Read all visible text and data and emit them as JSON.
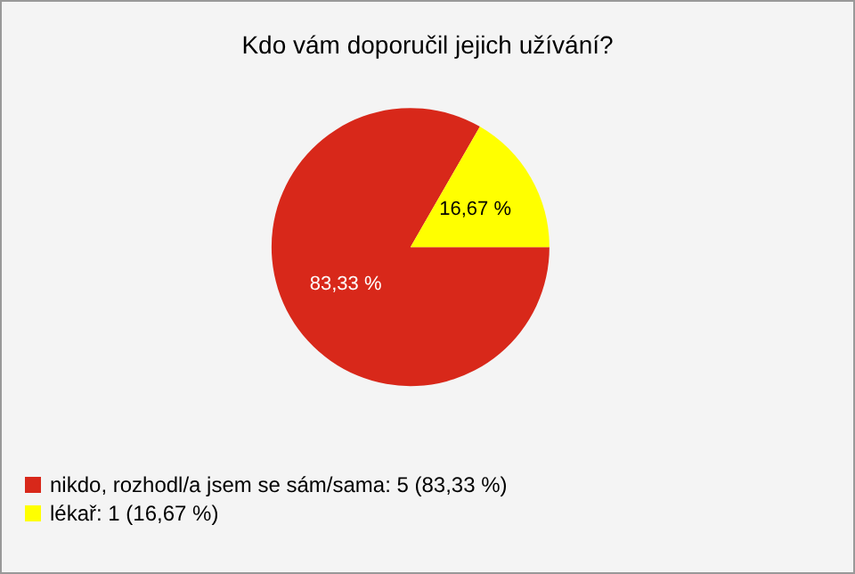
{
  "chart_data": {
    "type": "pie",
    "title": "Kdo vám doporučil jejich užívání?",
    "categories": [
      "nikdo, rozhodl/a jsem se sám/sama: 5 (83,33 %)",
      "lékař: 1 (16,67 %)"
    ],
    "values": [
      83.33,
      16.67
    ],
    "colors": [
      "#d8281a",
      "#ffff00"
    ],
    "value_labels": [
      "83,33 %",
      "16,67 %"
    ],
    "legend": "bottom left"
  }
}
